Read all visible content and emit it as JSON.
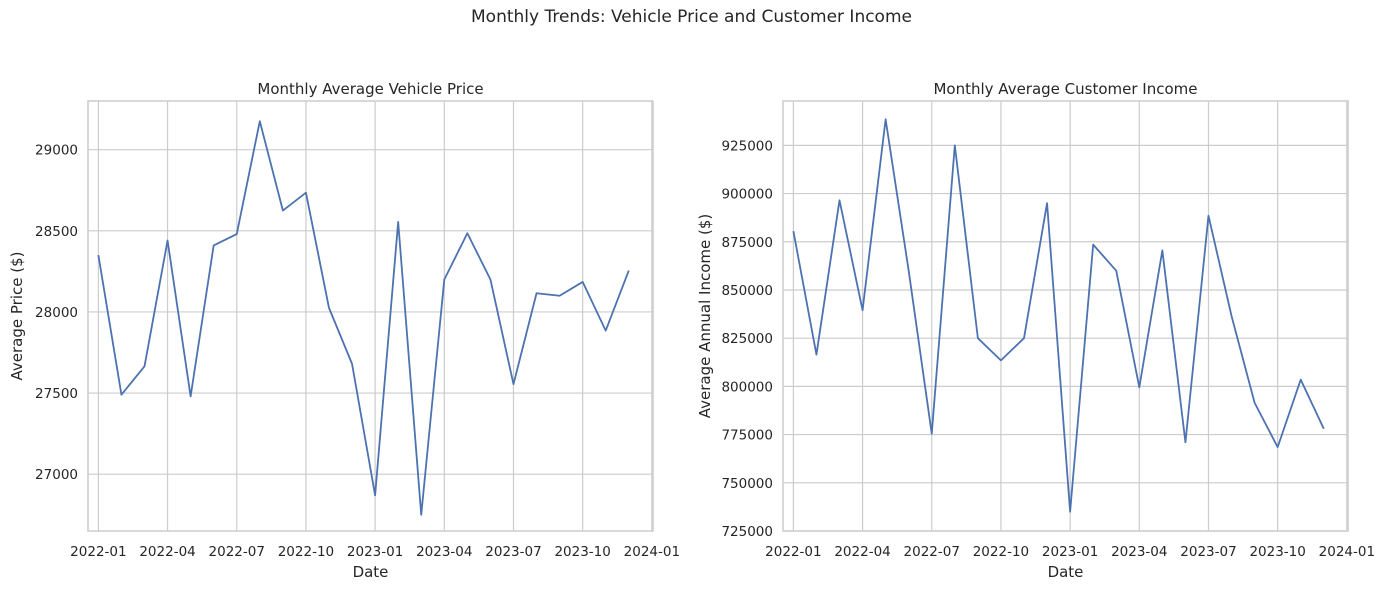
{
  "figure_title": "Monthly Trends: Vehicle Price and Customer Income",
  "colors": {
    "line": "#4c72b0",
    "grid": "#cccccc",
    "frame": "#cccccc"
  },
  "chart_data": [
    {
      "type": "line",
      "title": "Monthly Average Vehicle Price",
      "xlabel": "Date",
      "ylabel": "Average Price ($)",
      "grid": true,
      "x": [
        "2022-01",
        "2022-02",
        "2022-03",
        "2022-04",
        "2022-05",
        "2022-06",
        "2022-07",
        "2022-08",
        "2022-09",
        "2022-10",
        "2022-11",
        "2022-12",
        "2023-01",
        "2023-02",
        "2023-03",
        "2023-04",
        "2023-05",
        "2023-06",
        "2023-07",
        "2023-08",
        "2023-09",
        "2023-10",
        "2023-11",
        "2023-12"
      ],
      "series": [
        {
          "values": [
            28350,
            27490,
            27665,
            28440,
            27480,
            28410,
            28480,
            29175,
            28625,
            28735,
            28025,
            27680,
            26870,
            28555,
            26750,
            28200,
            28485,
            28200,
            27555,
            28115,
            28100,
            28185,
            27885,
            28255
          ]
        }
      ],
      "ylim": [
        26650,
        29300
      ],
      "xlim": [
        "2021-12",
        "2024-01"
      ],
      "x_ticks": [
        "2022-01",
        "2022-04",
        "2022-07",
        "2022-10",
        "2023-01",
        "2023-04",
        "2023-07",
        "2023-10",
        "2024-01"
      ],
      "y_ticks": [
        27000,
        27500,
        28000,
        28500,
        29000
      ]
    },
    {
      "type": "line",
      "title": "Monthly Average Customer Income",
      "xlabel": "Date",
      "ylabel": "Average Annual Income ($)",
      "grid": true,
      "x": [
        "2022-01",
        "2022-02",
        "2022-03",
        "2022-04",
        "2022-05",
        "2022-06",
        "2022-07",
        "2022-08",
        "2022-09",
        "2022-10",
        "2022-11",
        "2022-12",
        "2023-01",
        "2023-02",
        "2023-03",
        "2023-04",
        "2023-05",
        "2023-06",
        "2023-07",
        "2023-08",
        "2023-09",
        "2023-10",
        "2023-11",
        "2023-12"
      ],
      "series": [
        {
          "values": [
            880500,
            816500,
            896500,
            839500,
            938500,
            860000,
            775500,
            925000,
            825000,
            813500,
            825000,
            895000,
            735000,
            873500,
            860000,
            799500,
            870500,
            771000,
            888500,
            836500,
            791500,
            768500,
            803500,
            778000
          ]
        }
      ],
      "ylim": [
        725000,
        948000
      ],
      "xlim": [
        "2021-12",
        "2024-01"
      ],
      "x_ticks": [
        "2022-01",
        "2022-04",
        "2022-07",
        "2022-10",
        "2023-01",
        "2023-04",
        "2023-07",
        "2023-10",
        "2024-01"
      ],
      "y_ticks": [
        725000,
        750000,
        775000,
        800000,
        825000,
        850000,
        875000,
        900000,
        925000
      ]
    }
  ]
}
